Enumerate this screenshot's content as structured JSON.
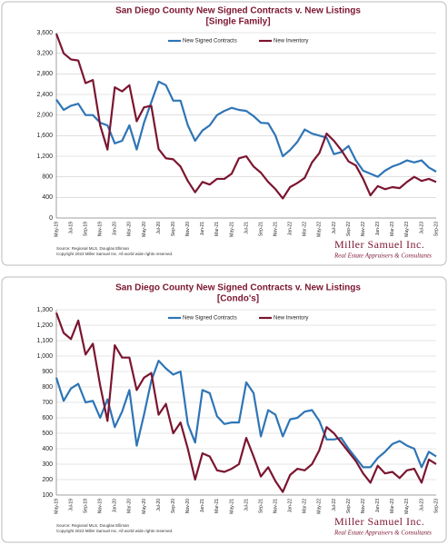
{
  "chart_data": [
    {
      "type": "line",
      "title": "San Diego County New Signed Contracts v. New Listings",
      "subtitle": "[Single Family]",
      "categories": [
        "May-19",
        null,
        "Jul-19",
        null,
        "Sep-19",
        null,
        "Nov-19",
        null,
        "Jan-20",
        null,
        "Mar-20",
        null,
        "May-20",
        null,
        "Jul-20",
        null,
        "Sep-20",
        null,
        "Nov-20",
        null,
        "Jan-21",
        null,
        "Mar-21",
        null,
        "May-21",
        null,
        "Jul-21",
        null,
        "Sep-21",
        null,
        "Nov-21",
        null,
        "Jan-22",
        null,
        "Mar-22",
        null,
        "May-22",
        null,
        "Jul-22",
        null,
        "Sep-22",
        null,
        "Nov-22",
        null,
        "Jan-23",
        null,
        "Mar-23",
        null,
        "May-23",
        null,
        "Jul-23",
        null,
        "Sep-23"
      ],
      "series": [
        {
          "name": "New Signed Contracts",
          "color": "#2e75b6",
          "values": [
            2300,
            2100,
            2180,
            2220,
            2000,
            2000,
            1850,
            1800,
            1450,
            1500,
            1800,
            1330,
            1850,
            2250,
            2650,
            2580,
            2280,
            2280,
            1800,
            1500,
            1700,
            1800,
            2000,
            2080,
            2140,
            2100,
            2080,
            1980,
            1850,
            1840,
            1600,
            1200,
            1320,
            1480,
            1720,
            1640,
            1600,
            1560,
            1240,
            1280,
            1400,
            1120,
            920,
            860,
            800,
            920,
            1000,
            1050,
            1120,
            1080,
            1120,
            980,
            900
          ]
        },
        {
          "name": "New Inventory",
          "color": "#7b1530",
          "values": [
            3580,
            3200,
            3080,
            3060,
            2620,
            2680,
            1800,
            1330,
            2540,
            2460,
            2580,
            1880,
            2150,
            2180,
            1340,
            1160,
            1140,
            1000,
            720,
            500,
            700,
            650,
            760,
            760,
            860,
            1160,
            1200,
            1000,
            880,
            700,
            560,
            380,
            600,
            680,
            780,
            1080,
            1260,
            1640,
            1500,
            1320,
            1100,
            1020,
            760,
            440,
            620,
            560,
            600,
            580,
            700,
            800,
            720,
            760,
            700
          ]
        }
      ],
      "ylim": [
        0,
        3600
      ],
      "yticks": [
        0,
        400,
        800,
        {
          "value": 1200,
          "label": "1,200"
        },
        {
          "value": 1600,
          "label": "1,600"
        },
        {
          "value": 2000,
          "label": "2,000"
        },
        {
          "value": 2400,
          "label": "2,400"
        },
        {
          "value": 2800,
          "label": "2,800"
        },
        {
          "value": 3200,
          "label": "3,200"
        },
        {
          "value": 3600,
          "label": "3,600"
        }
      ],
      "source": [
        "Source: Regional MLS, Douglas Elliman",
        "Copyright 2023 Miller Samuel Inc. All world wide rights reserved."
      ],
      "brand": "Miller Samuel Inc.",
      "brand_tagline": "Real Estate Appraisers & Consultants"
    },
    {
      "type": "line",
      "title": "San Diego County New Signed Contracts v. New Listings",
      "subtitle": "[Condo's]",
      "categories": [
        "May-19",
        null,
        "Jul-19",
        null,
        "Sep-19",
        null,
        "Nov-19",
        null,
        "Jan-20",
        null,
        "Mar-20",
        null,
        "May-20",
        null,
        "Jul-20",
        null,
        "Sep-20",
        null,
        "Nov-20",
        null,
        "Jan-21",
        null,
        "Mar-21",
        null,
        "May-21",
        null,
        "Jul-21",
        null,
        "Sep-21",
        null,
        "Nov-21",
        null,
        "Jan-22",
        null,
        "Mar-22",
        null,
        "May-22",
        null,
        "Jul-22",
        null,
        "Sep-22",
        null,
        "Nov-22",
        null,
        "Jan-23",
        null,
        "Mar-23",
        null,
        "May-23",
        null,
        "Jul-23",
        null,
        "Sep-23"
      ],
      "series": [
        {
          "name": "New Signed Contracts",
          "color": "#2e75b6",
          "values": [
            860,
            710,
            790,
            820,
            700,
            710,
            600,
            720,
            540,
            640,
            780,
            420,
            620,
            840,
            970,
            920,
            880,
            900,
            560,
            440,
            780,
            760,
            610,
            560,
            570,
            570,
            830,
            760,
            480,
            650,
            620,
            480,
            590,
            600,
            640,
            650,
            580,
            460,
            460,
            470,
            400,
            340,
            280,
            280,
            340,
            380,
            430,
            450,
            420,
            400,
            280,
            380,
            350
          ]
        },
        {
          "name": "New Inventory",
          "color": "#7b1530",
          "values": [
            1280,
            1150,
            1110,
            1230,
            1010,
            1080,
            810,
            580,
            1070,
            990,
            990,
            780,
            860,
            890,
            620,
            690,
            500,
            570,
            400,
            200,
            370,
            350,
            260,
            250,
            270,
            300,
            470,
            350,
            220,
            280,
            190,
            120,
            230,
            270,
            260,
            300,
            390,
            540,
            500,
            440,
            380,
            320,
            240,
            180,
            290,
            240,
            250,
            210,
            260,
            270,
            180,
            330,
            300
          ]
        }
      ],
      "ylim": [
        100,
        1300
      ],
      "yticks": [
        100,
        200,
        300,
        400,
        500,
        600,
        700,
        800,
        900,
        {
          "value": 1000,
          "label": "1,000"
        },
        {
          "value": 1100,
          "label": "1,100"
        },
        {
          "value": 1200,
          "label": "1,200"
        },
        {
          "value": 1300,
          "label": "1,300"
        }
      ],
      "source": [
        "Source: Regional MLS, Douglas Elliman",
        "Copyright 2023 Miller Samuel Inc. All world wide rights reserved."
      ],
      "brand": "Miller Samuel Inc.",
      "brand_tagline": "Real Estate Appraisers & Consultants"
    }
  ]
}
